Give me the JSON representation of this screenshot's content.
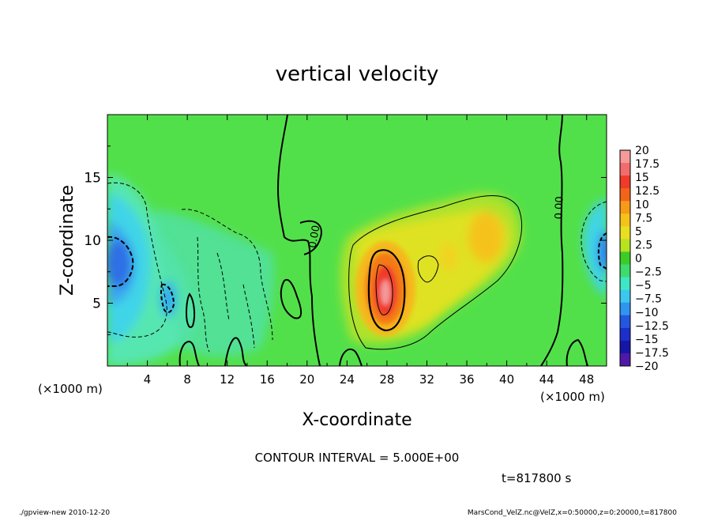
{
  "chart_data": {
    "type": "heatmap",
    "title": "vertical velocity",
    "xlabel": "X-coordinate",
    "ylabel": "Z-coordinate",
    "x_unit_label": "(×1000 m)",
    "y_unit_label": "(×1000 m)",
    "xlim": [
      0,
      50
    ],
    "ylim": [
      0,
      20
    ],
    "x_ticks": [
      4,
      8,
      12,
      16,
      20,
      24,
      28,
      32,
      36,
      40,
      44,
      48
    ],
    "x_tick_labels": [
      "4",
      "8",
      "12",
      "16",
      "20",
      "24",
      "28",
      "32",
      "36",
      "40",
      "44",
      "48"
    ],
    "y_ticks": [
      5,
      10,
      15
    ],
    "y_tick_labels": [
      "5",
      "10",
      "15"
    ],
    "contour_label": "0.00",
    "contour_interval_text": "CONTOUR INTERVAL = 5.000E+00",
    "time_text": "t=817800 s",
    "colorbar": {
      "levels": [
        20,
        17.5,
        15,
        12.5,
        10,
        7.5,
        5,
        2.5,
        0,
        -2.5,
        -5,
        -7.5,
        -10,
        -12.5,
        -15,
        -17.5,
        -20
      ],
      "labels": [
        "20",
        "17.5",
        "15",
        "12.5",
        "10",
        "7.5",
        "5",
        "2.5",
        "0",
        "−2.5",
        "−5",
        "−7.5",
        "−10",
        "−12.5",
        "−15",
        "−17.5",
        "−20"
      ],
      "colors": [
        "#f49a9a",
        "#f26c6c",
        "#f03a2a",
        "#f26418",
        "#f79a18",
        "#f5c21c",
        "#e8df22",
        "#b7e21f",
        "#3ccc28",
        "#3ddc6c",
        "#3fe6c3",
        "#3cc7ef",
        "#2f95ef",
        "#2457e0",
        "#1c2fc9",
        "#1616a6",
        "#5018a8"
      ]
    },
    "field_background": "#52e04a",
    "features": [
      {
        "kind": "updraft",
        "x": 28,
        "z": 5.8,
        "value": 19
      },
      {
        "kind": "updraft",
        "x": 38.5,
        "z": 10.2,
        "value": 9
      },
      {
        "kind": "downdraft",
        "x": 0.8,
        "z": 8.5,
        "value": -14
      },
      {
        "kind": "downdraft",
        "x": 49.6,
        "z": 9.5,
        "value": -11
      },
      {
        "kind": "downdraft",
        "x": 5.5,
        "z": 4.5,
        "value": -8
      }
    ]
  },
  "footer": {
    "left": "./gpview-new  2010-12-20",
    "right": "MarsCond_VelZ.nc@VelZ,x=0:50000,z=0:20000,t=817800"
  }
}
